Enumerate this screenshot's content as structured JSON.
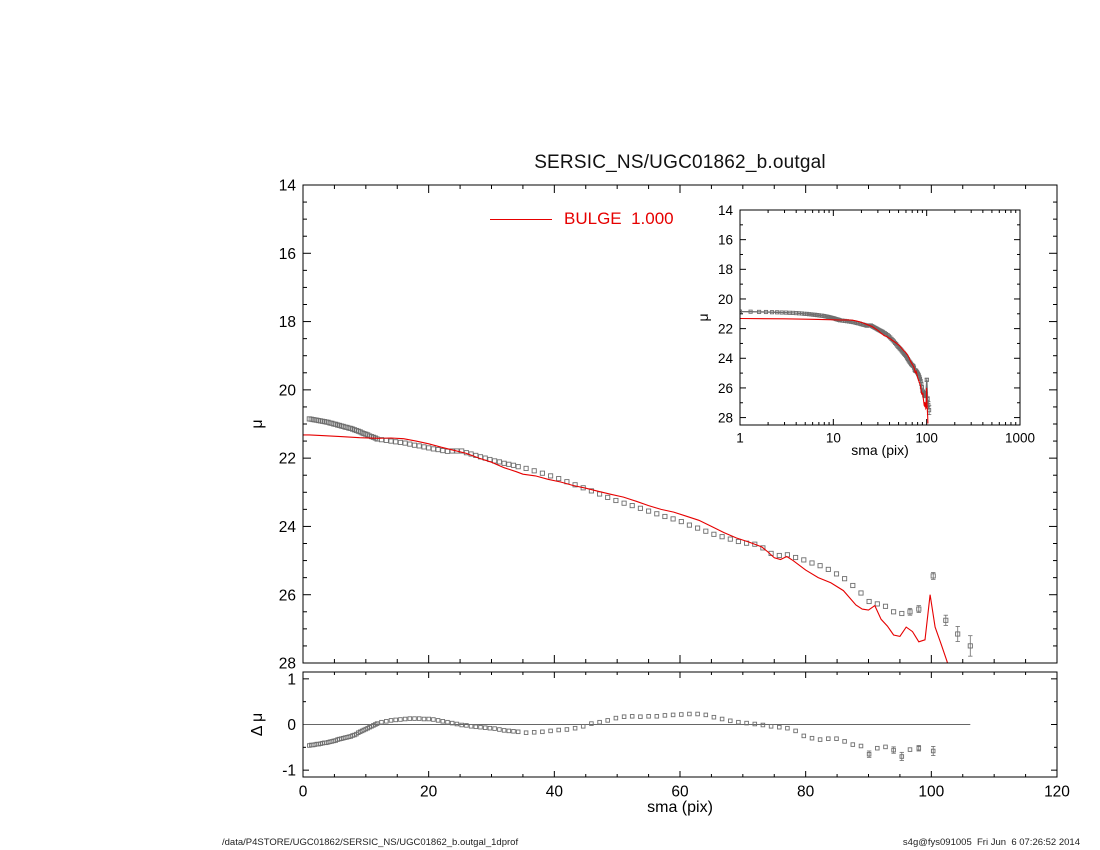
{
  "title": "SERSIC_NS/UGC01862_b.outgal",
  "legend": {
    "label": "BULGE  1.000",
    "color": "#e60000"
  },
  "footer": {
    "left": "/data/P4STORE/UGC01862/SERSIC_NS/UGC01862_b.outgal_1dprof",
    "right": "s4g@fys091005  Fri Jun  6 07:26:52 2014"
  },
  "colors": {
    "data": "#6e6e6e",
    "model": "#e60000",
    "axis": "#000000",
    "zero_line": "#666666"
  },
  "chart_data": [
    {
      "id": "main",
      "type": "scatter",
      "title": "SERSIC_NS/UGC01862_b.outgal",
      "xlabel": "",
      "ylabel": "μ",
      "xlim": [
        0,
        120
      ],
      "ylim": [
        28,
        14
      ],
      "xticks": [
        0,
        20,
        40,
        60,
        80,
        100,
        120
      ],
      "yticks": [
        14,
        16,
        18,
        20,
        22,
        24,
        26,
        28
      ],
      "series": [
        {
          "name": "profile-data",
          "type": "scatter",
          "marker": "square",
          "color": "#6e6e6e",
          "x": [
            1.0,
            1.3,
            1.6,
            1.9,
            2.2,
            2.5,
            2.8,
            3.1,
            3.4,
            3.7,
            4.0,
            4.3,
            4.6,
            4.9,
            5.2,
            5.5,
            5.8,
            6.1,
            6.4,
            6.7,
            7.0,
            7.3,
            7.6,
            7.9,
            8.2,
            8.5,
            8.8,
            9.1,
            9.4,
            9.7,
            10.0,
            10.3,
            10.6,
            10.9,
            11.2,
            11.5,
            11.8,
            12.5,
            13.25,
            14.0,
            14.75,
            15.5,
            16.25,
            17.0,
            17.75,
            18.5,
            19.25,
            20.0,
            20.75,
            21.5,
            22.25,
            23.0,
            23.75,
            24.5,
            25.25,
            26.0,
            26.75,
            27.5,
            28.25,
            29.0,
            29.75,
            30.5,
            31.25,
            32.0,
            32.75,
            33.5,
            34.25,
            35.5,
            36.8,
            38.1,
            39.4,
            40.7,
            42.0,
            43.3,
            44.6,
            45.9,
            47.2,
            48.5,
            49.8,
            51.1,
            52.4,
            53.7,
            55.0,
            56.3,
            57.6,
            58.9,
            60.2,
            61.5,
            62.8,
            64.1,
            65.4,
            66.7,
            68.0,
            69.3,
            70.6,
            71.9,
            73.2,
            74.5,
            75.8,
            77.1,
            78.4,
            79.7,
            81.0,
            82.3,
            83.6,
            84.9,
            86.2,
            87.5,
            88.8,
            90.1,
            91.4,
            92.7,
            94.0,
            95.3,
            96.6,
            98.0,
            100.3,
            102.3,
            104.2,
            106.2
          ],
          "y": [
            20.85,
            20.86,
            20.87,
            20.88,
            20.89,
            20.9,
            20.91,
            20.92,
            20.93,
            20.94,
            20.95,
            20.97,
            20.98,
            21.0,
            21.01,
            21.03,
            21.04,
            21.06,
            21.07,
            21.09,
            21.1,
            21.12,
            21.13,
            21.15,
            21.17,
            21.19,
            21.21,
            21.23,
            21.26,
            21.28,
            21.3,
            21.32,
            21.35,
            21.37,
            21.39,
            21.41,
            21.44,
            21.46,
            21.48,
            21.5,
            21.52,
            21.54,
            21.56,
            21.59,
            21.62,
            21.64,
            21.67,
            21.7,
            21.73,
            21.75,
            21.78,
            21.8,
            21.79,
            21.79,
            21.79,
            21.84,
            21.88,
            21.92,
            21.96,
            22.0,
            22.04,
            22.08,
            22.11,
            22.15,
            22.18,
            22.21,
            22.25,
            22.3,
            22.37,
            22.44,
            22.52,
            22.6,
            22.69,
            22.78,
            22.87,
            22.96,
            23.05,
            23.15,
            23.24,
            23.32,
            23.39,
            23.47,
            23.55,
            23.63,
            23.71,
            23.78,
            23.86,
            23.96,
            24.05,
            24.14,
            24.23,
            24.3,
            24.37,
            24.44,
            24.49,
            24.52,
            24.63,
            24.79,
            24.85,
            24.83,
            24.91,
            24.98,
            25.07,
            25.15,
            25.26,
            25.39,
            25.53,
            25.73,
            25.95,
            26.2,
            26.27,
            26.34,
            26.5,
            26.55,
            26.5,
            26.42,
            25.45,
            26.75,
            27.15,
            27.5
          ],
          "errorbars": [
            {
              "x": 96.6,
              "y": 26.5,
              "e": 0.1
            },
            {
              "x": 98.0,
              "y": 26.42,
              "e": 0.1
            },
            {
              "x": 100.3,
              "y": 25.45,
              "e": 0.1
            },
            {
              "x": 102.3,
              "y": 26.75,
              "e": 0.15
            },
            {
              "x": 104.2,
              "y": 27.15,
              "e": 0.22
            },
            {
              "x": 106.2,
              "y": 27.5,
              "e": 0.3
            }
          ]
        },
        {
          "name": "bulge-model",
          "type": "line",
          "label": "BULGE  1.000",
          "color": "#e60000",
          "x": [
            0,
            1,
            3,
            6,
            9,
            12,
            14,
            16,
            18,
            20,
            22,
            24,
            26,
            28,
            30,
            32,
            34,
            35,
            37,
            39,
            41,
            43,
            45,
            47,
            49,
            51,
            53,
            55,
            57,
            59,
            61,
            63,
            65,
            67,
            69,
            71,
            73,
            74,
            75,
            76,
            77,
            78,
            80,
            82,
            84,
            86,
            88,
            89,
            90,
            91,
            92,
            93,
            94,
            95,
            96,
            97,
            98,
            99,
            99.8,
            100.6,
            101.5,
            102.5,
            103.2
          ],
          "y": [
            21.32,
            21.32,
            21.34,
            21.37,
            21.4,
            21.42,
            21.41,
            21.43,
            21.5,
            21.58,
            21.68,
            21.77,
            21.86,
            22.0,
            22.12,
            22.28,
            22.4,
            22.47,
            22.52,
            22.62,
            22.7,
            22.8,
            22.88,
            22.97,
            23.06,
            23.14,
            23.26,
            23.39,
            23.5,
            23.58,
            23.7,
            23.82,
            24.0,
            24.18,
            24.34,
            24.46,
            24.6,
            24.75,
            24.92,
            24.97,
            24.88,
            25.0,
            25.28,
            25.5,
            25.65,
            25.88,
            26.3,
            26.42,
            26.45,
            26.32,
            26.72,
            26.92,
            27.18,
            27.22,
            26.95,
            27.08,
            27.38,
            27.32,
            26.0,
            26.95,
            27.42,
            27.95,
            28.4
          ]
        }
      ]
    },
    {
      "id": "inset",
      "type": "scatter",
      "xscale": "log",
      "xlabel": "sma (pix)",
      "ylabel": "μ",
      "xlim": [
        1,
        1000
      ],
      "ylim": [
        28.5,
        14
      ],
      "xticks": [
        1,
        10,
        100,
        1000
      ],
      "yticks": [
        14,
        16,
        18,
        20,
        22,
        24,
        26,
        28
      ],
      "series_ref": [
        "profile-data",
        "bulge-model"
      ]
    },
    {
      "id": "residual",
      "type": "scatter",
      "xlabel": "sma (pix)",
      "ylabel": "Δ μ",
      "xlim": [
        0,
        120
      ],
      "ylim": [
        -1.15,
        1.15
      ],
      "xticks": [
        0,
        20,
        40,
        60,
        80,
        100,
        120
      ],
      "yticks": [
        -1,
        0,
        1
      ],
      "zero_line": true,
      "zero_line_to": 106.2,
      "series": [
        {
          "name": "residuals",
          "type": "scatter",
          "marker": "square",
          "color": "#6e6e6e",
          "x": [
            1.0,
            1.3,
            1.6,
            1.9,
            2.2,
            2.5,
            2.8,
            3.1,
            3.4,
            3.7,
            4.0,
            4.3,
            4.6,
            4.9,
            5.2,
            5.5,
            5.8,
            6.1,
            6.4,
            6.7,
            7.0,
            7.3,
            7.6,
            7.9,
            8.2,
            8.5,
            8.8,
            9.1,
            9.4,
            9.7,
            10.0,
            10.3,
            10.6,
            10.9,
            11.2,
            11.5,
            11.8,
            12.5,
            13.25,
            14.0,
            14.75,
            15.5,
            16.25,
            17.0,
            17.75,
            18.5,
            19.25,
            20.0,
            20.75,
            21.5,
            22.25,
            23.0,
            23.75,
            24.5,
            25.25,
            26.0,
            26.75,
            27.5,
            28.25,
            29.0,
            29.75,
            30.5,
            31.25,
            32.0,
            32.75,
            33.5,
            34.25,
            35.5,
            36.8,
            38.1,
            39.4,
            40.7,
            42.0,
            43.3,
            44.6,
            45.9,
            47.2,
            48.5,
            49.8,
            51.1,
            52.4,
            53.7,
            55.0,
            56.3,
            57.6,
            58.9,
            60.2,
            61.5,
            62.8,
            64.1,
            65.4,
            66.7,
            68.0,
            69.3,
            70.6,
            71.9,
            73.2,
            74.5,
            75.8,
            77.1,
            78.4,
            79.7,
            81.0,
            82.3,
            83.6,
            84.9,
            86.2,
            87.5,
            88.8,
            90.1,
            91.4,
            92.7,
            94.0,
            95.3,
            96.6,
            98.0,
            100.3
          ],
          "y": [
            -0.46,
            -0.45,
            -0.45,
            -0.44,
            -0.43,
            -0.43,
            -0.42,
            -0.41,
            -0.4,
            -0.4,
            -0.39,
            -0.38,
            -0.37,
            -0.36,
            -0.35,
            -0.33,
            -0.32,
            -0.31,
            -0.3,
            -0.29,
            -0.28,
            -0.27,
            -0.26,
            -0.24,
            -0.23,
            -0.21,
            -0.18,
            -0.16,
            -0.14,
            -0.12,
            -0.1,
            -0.08,
            -0.06,
            -0.04,
            -0.02,
            0.0,
            0.02,
            0.05,
            0.07,
            0.09,
            0.1,
            0.11,
            0.12,
            0.13,
            0.13,
            0.13,
            0.12,
            0.12,
            0.11,
            0.09,
            0.07,
            0.05,
            0.03,
            0.01,
            -0.01,
            -0.02,
            -0.04,
            -0.05,
            -0.06,
            -0.07,
            -0.08,
            -0.09,
            -0.11,
            -0.13,
            -0.14,
            -0.15,
            -0.16,
            -0.18,
            -0.17,
            -0.16,
            -0.14,
            -0.12,
            -0.11,
            -0.08,
            -0.04,
            0.02,
            0.05,
            0.09,
            0.14,
            0.17,
            0.18,
            0.17,
            0.18,
            0.18,
            0.2,
            0.21,
            0.22,
            0.23,
            0.23,
            0.21,
            0.16,
            0.12,
            0.08,
            0.05,
            0.03,
            0.01,
            -0.01,
            -0.04,
            -0.06,
            -0.08,
            -0.14,
            -0.25,
            -0.3,
            -0.33,
            -0.31,
            -0.31,
            -0.37,
            -0.44,
            -0.47,
            -0.65,
            -0.52,
            -0.49,
            -0.56,
            -0.7,
            -0.55,
            -0.52,
            -0.58
          ],
          "errorbars": [
            {
              "x": 90.1,
              "y": -0.65,
              "e": 0.07
            },
            {
              "x": 94.0,
              "y": -0.56,
              "e": 0.07
            },
            {
              "x": 95.3,
              "y": -0.7,
              "e": 0.09
            },
            {
              "x": 98.0,
              "y": -0.52,
              "e": 0.06
            },
            {
              "x": 100.3,
              "y": -0.58,
              "e": 0.1
            }
          ]
        }
      ]
    }
  ]
}
